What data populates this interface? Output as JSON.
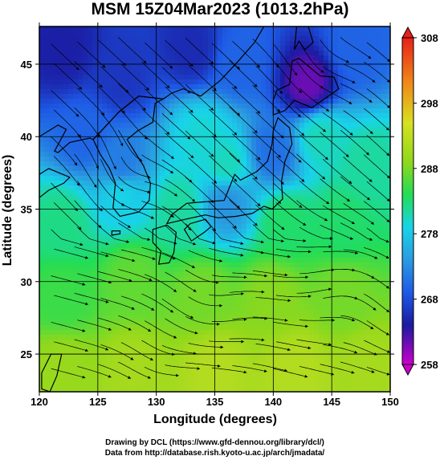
{
  "title": "MSM 15Z04Mar2023 (1013.2hPa)",
  "credits": {
    "line1": "Drawing by DCL (https://www.gfd-dennou.org/library/dcl/)",
    "line2": "Data from http://database.rish.kyoto-u.ac.jp/arch/jmadata/"
  },
  "colors": {
    "scale": [
      "#cc00cc",
      "#1a1aa0",
      "#1e5ae6",
      "#2a9be0",
      "#18d4e8",
      "#22dd55",
      "#8fd81c",
      "#d8e022",
      "#f08a18",
      "#e8201a"
    ],
    "land": "#2a2a8c",
    "lines": "#000000"
  },
  "chart_data": {
    "type": "heatmap",
    "title": "MSM 15Z04Mar2023 (1013.2hPa)",
    "xlabel": "Longitude (degrees)",
    "ylabel": "Latitude  (degrees)",
    "xlim": [
      120,
      150
    ],
    "ylim": [
      22.4,
      47.6
    ],
    "x_ticks": [
      120,
      125,
      130,
      135,
      140,
      145,
      150
    ],
    "y_ticks": [
      25,
      30,
      35,
      40,
      45
    ],
    "grid": true,
    "overlay": "streamlines",
    "colorbar": {
      "ticks": [
        258,
        268,
        278,
        288,
        298,
        308
      ],
      "range": [
        258,
        308
      ]
    },
    "temperature_samples": [
      {
        "lon": 122,
        "lat": 46,
        "value": 264
      },
      {
        "lon": 127,
        "lat": 44,
        "value": 266
      },
      {
        "lon": 133,
        "lat": 46,
        "value": 265
      },
      {
        "lon": 137,
        "lat": 45,
        "value": 270
      },
      {
        "lon": 143,
        "lat": 43.5,
        "value": 261
      },
      {
        "lon": 147,
        "lat": 46,
        "value": 270
      },
      {
        "lon": 124,
        "lat": 40,
        "value": 270
      },
      {
        "lon": 127,
        "lat": 38,
        "value": 272
      },
      {
        "lon": 134,
        "lat": 40,
        "value": 281
      },
      {
        "lon": 136,
        "lat": 38,
        "value": 282
      },
      {
        "lon": 140,
        "lat": 39,
        "value": 271
      },
      {
        "lon": 144,
        "lat": 40,
        "value": 282
      },
      {
        "lon": 148,
        "lat": 38,
        "value": 283
      },
      {
        "lon": 122,
        "lat": 34,
        "value": 284
      },
      {
        "lon": 127,
        "lat": 36,
        "value": 280
      },
      {
        "lon": 132,
        "lat": 35,
        "value": 283
      },
      {
        "lon": 136,
        "lat": 35.5,
        "value": 274
      },
      {
        "lon": 141,
        "lat": 34,
        "value": 285
      },
      {
        "lon": 146,
        "lat": 34,
        "value": 285
      },
      {
        "lon": 122,
        "lat": 29,
        "value": 287
      },
      {
        "lon": 128,
        "lat": 30,
        "value": 289
      },
      {
        "lon": 134,
        "lat": 29,
        "value": 290
      },
      {
        "lon": 140,
        "lat": 29,
        "value": 291
      },
      {
        "lon": 146,
        "lat": 29,
        "value": 290
      },
      {
        "lon": 122,
        "lat": 24,
        "value": 292
      },
      {
        "lon": 128,
        "lat": 24,
        "value": 293
      },
      {
        "lon": 135,
        "lat": 24,
        "value": 294
      },
      {
        "lon": 142,
        "lat": 24,
        "value": 294
      },
      {
        "lon": 148,
        "lat": 24,
        "value": 293
      }
    ]
  }
}
